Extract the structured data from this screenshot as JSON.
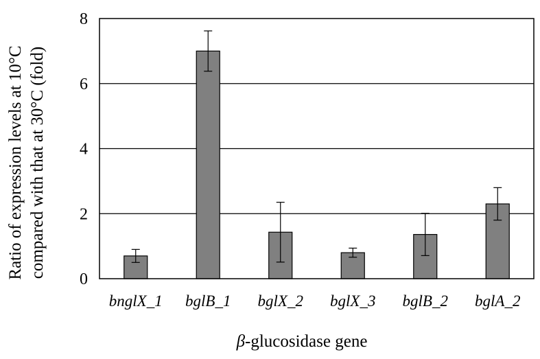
{
  "chart_data": {
    "type": "bar",
    "categories": [
      "bnglX_1",
      "bglB_1",
      "bglX_2",
      "bglX_3",
      "bglB_2",
      "bglA_2"
    ],
    "values": [
      0.7,
      7.0,
      1.43,
      0.8,
      1.36,
      2.3
    ],
    "error": [
      0.2,
      0.62,
      0.92,
      0.14,
      0.65,
      0.5
    ],
    "ylabel_line1": "Ratio of expression levels at 10°C",
    "ylabel_line2": "compared with that at 30°C (fold)",
    "xlabel_symbol": "β",
    "xlabel_rest": "-glucosidase gene",
    "ylim": [
      0,
      8
    ],
    "yticks": [
      "0",
      "2",
      "4",
      "6",
      "8"
    ],
    "grid": true,
    "bar_color": "#808080",
    "legend": "none"
  }
}
